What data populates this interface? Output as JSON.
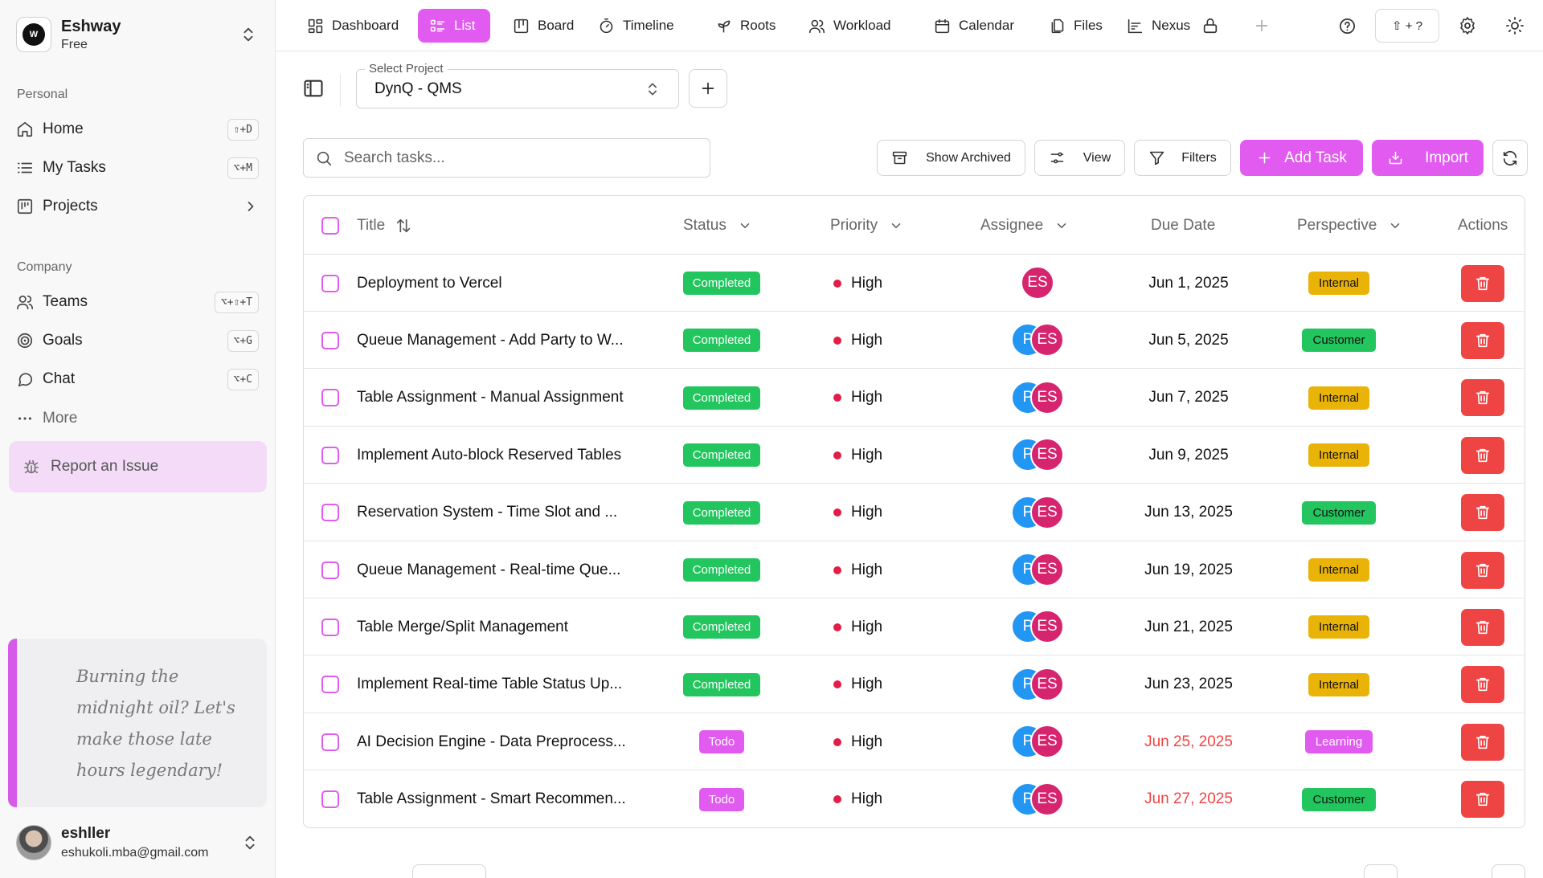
{
  "workspace": {
    "name": "Eshway",
    "plan": "Free",
    "logo_letter": "W"
  },
  "sidebar": {
    "personal_label": "Personal",
    "personal_items": [
      {
        "label": "Home",
        "shortcut": "⇧+D",
        "icon": "home-icon"
      },
      {
        "label": "My Tasks",
        "shortcut": "⌥+M",
        "icon": "list-icon"
      },
      {
        "label": "Projects",
        "shortcut": "",
        "icon": "board-icon"
      }
    ],
    "company_label": "Company",
    "company_items": [
      {
        "label": "Teams",
        "shortcut": "⌥+⇧+T",
        "icon": "users-icon"
      },
      {
        "label": "Goals",
        "shortcut": "⌥+G",
        "icon": "target-icon"
      },
      {
        "label": "Chat",
        "shortcut": "⌥+C",
        "icon": "chat-icon"
      },
      {
        "label": "More",
        "shortcut": "",
        "icon": "dots-icon"
      }
    ],
    "report_label": "Report an Issue",
    "quote": "Burning the midnight oil? Let's make those late hours legendary!",
    "user": {
      "name": "eshller",
      "email": "eshukoli.mba@gmail.com"
    }
  },
  "topnav": {
    "tabs": [
      {
        "label": "Dashboard",
        "icon": "dashboard-icon"
      },
      {
        "label": "List",
        "icon": "list-icon",
        "active": true
      },
      {
        "label": "Board",
        "icon": "board-icon"
      },
      {
        "label": "Timeline",
        "icon": "timer-icon"
      },
      {
        "label": "Roots",
        "icon": "sprout-icon"
      },
      {
        "label": "Workload",
        "icon": "users-icon"
      },
      {
        "label": "Calendar",
        "icon": "calendar-icon"
      },
      {
        "label": "Files",
        "icon": "files-icon"
      },
      {
        "label": "Nexus",
        "icon": "chart-icon"
      }
    ],
    "shortcut_label": "⇧ + ?"
  },
  "project": {
    "legend": "Select Project",
    "value": "DynQ - QMS"
  },
  "toolbar": {
    "search_placeholder": "Search tasks...",
    "show_archived": "Show Archived",
    "view": "View",
    "filters": "Filters",
    "add_task": "Add Task",
    "import": "Import"
  },
  "table": {
    "headers": {
      "title": "Title",
      "status": "Status",
      "priority": "Priority",
      "assignee": "Assignee",
      "due_date": "Due Date",
      "perspective": "Perspective",
      "actions": "Actions"
    },
    "rows": [
      {
        "title": "Deployment to Vercel",
        "status": "Completed",
        "priority": "High",
        "assignees": [
          "ES"
        ],
        "due": "Jun 1, 2025",
        "overdue": false,
        "perspective": "Internal"
      },
      {
        "title": "Queue Management - Add Party to W...",
        "status": "Completed",
        "priority": "High",
        "assignees": [
          "P",
          "ES"
        ],
        "due": "Jun 5, 2025",
        "overdue": false,
        "perspective": "Customer"
      },
      {
        "title": "Table Assignment - Manual Assignment",
        "status": "Completed",
        "priority": "High",
        "assignees": [
          "P",
          "ES"
        ],
        "due": "Jun 7, 2025",
        "overdue": false,
        "perspective": "Internal"
      },
      {
        "title": "Implement Auto-block Reserved Tables",
        "status": "Completed",
        "priority": "High",
        "assignees": [
          "P",
          "ES"
        ],
        "due": "Jun 9, 2025",
        "overdue": false,
        "perspective": "Internal"
      },
      {
        "title": "Reservation System - Time Slot and ...",
        "status": "Completed",
        "priority": "High",
        "assignees": [
          "P",
          "ES"
        ],
        "due": "Jun 13, 2025",
        "overdue": false,
        "perspective": "Customer"
      },
      {
        "title": "Queue Management - Real-time Que...",
        "status": "Completed",
        "priority": "High",
        "assignees": [
          "P",
          "ES"
        ],
        "due": "Jun 19, 2025",
        "overdue": false,
        "perspective": "Internal"
      },
      {
        "title": "Table Merge/Split Management",
        "status": "Completed",
        "priority": "High",
        "assignees": [
          "P",
          "ES"
        ],
        "due": "Jun 21, 2025",
        "overdue": false,
        "perspective": "Internal"
      },
      {
        "title": "Implement Real-time Table Status Up...",
        "status": "Completed",
        "priority": "High",
        "assignees": [
          "P",
          "ES"
        ],
        "due": "Jun 23, 2025",
        "overdue": false,
        "perspective": "Internal"
      },
      {
        "title": "AI Decision Engine - Data Preprocess...",
        "status": "Todo",
        "priority": "High",
        "assignees": [
          "P",
          "ES"
        ],
        "due": "Jun 25, 2025",
        "overdue": true,
        "perspective": "Learning"
      },
      {
        "title": "Table Assignment - Smart Recommen...",
        "status": "Todo",
        "priority": "High",
        "assignees": [
          "P",
          "ES"
        ],
        "due": "Jun 27, 2025",
        "overdue": true,
        "perspective": "Customer"
      }
    ]
  },
  "colors": {
    "accent": "#e25bf0",
    "completed": "#22c55e",
    "internal": "#eab308",
    "danger": "#ef4444",
    "assignee_p": "#2196f3",
    "assignee_es": "#d6246e"
  }
}
